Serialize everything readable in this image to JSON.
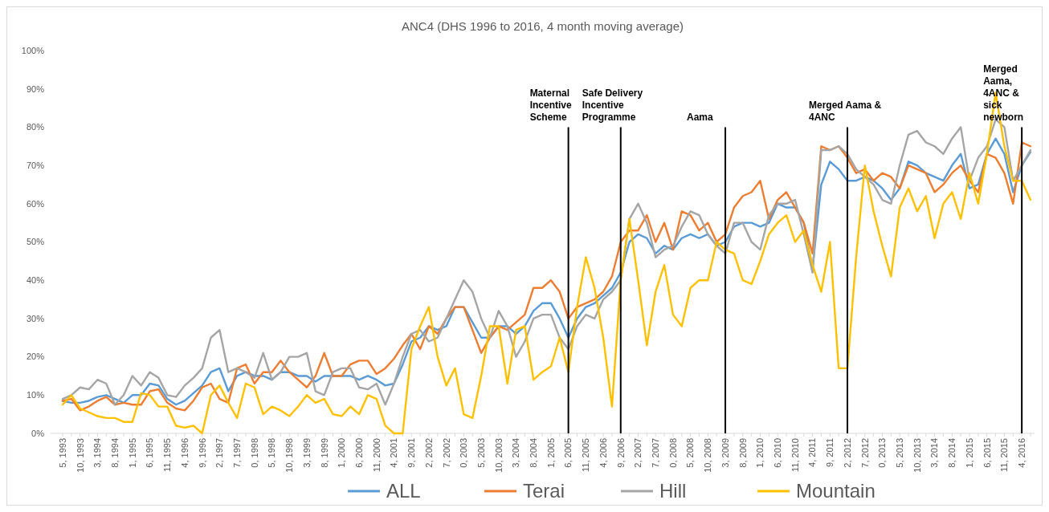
{
  "chart_data": {
    "type": "line",
    "title": "ANC4  (DHS 1996 to 2016, 4 month moving average)",
    "categories": [
      "5, 1993",
      null,
      "10, 1993",
      null,
      "3, 1994",
      null,
      "8, 1994",
      null,
      "1, 1995",
      null,
      "6, 1995",
      null,
      "11, 1995",
      null,
      "4, 1996",
      null,
      "9, 1996",
      null,
      "2, 1997",
      null,
      "7, 1997",
      null,
      "0, 1998",
      null,
      "5, 1998",
      null,
      "10, 1998",
      null,
      "3, 1999",
      null,
      "8, 1999",
      null,
      "1, 2000",
      null,
      "6, 2000",
      null,
      "11, 2000",
      null,
      "4, 2001",
      null,
      "9, 2001",
      null,
      "2, 2002",
      null,
      "7, 2002",
      null,
      "0, 2003",
      null,
      "5, 2003",
      null,
      "10, 2003",
      null,
      "3, 2004",
      null,
      "8, 2004",
      null,
      "1, 2005",
      null,
      "6, 2005",
      null,
      "11, 2005",
      null,
      "4, 2006",
      null,
      "9, 2006",
      null,
      "2, 2007",
      null,
      "7, 2007",
      null,
      "0, 2008",
      null,
      "5, 2008",
      null,
      "10, 2008",
      null,
      "3, 2009",
      null,
      "8, 2009",
      null,
      "1, 2010",
      null,
      "6, 2010",
      null,
      "11, 2010",
      null,
      "4, 2011",
      null,
      "9, 2011",
      null,
      "2, 2012",
      null,
      "7, 2012",
      null,
      "0, 2013",
      null,
      "5, 2013",
      null,
      "10, 2013",
      null,
      "3, 2014",
      null,
      "8, 2014",
      null,
      "1, 2015",
      null,
      "6, 2015",
      null,
      "11, 2015",
      null,
      "4, 2016",
      null
    ],
    "series": [
      {
        "name": "ALL",
        "color": "#5b9bd5",
        "values": [
          8.5,
          8,
          8,
          8.5,
          9.5,
          10,
          9,
          8,
          10,
          10,
          13,
          12.5,
          9,
          7.5,
          8.5,
          10.5,
          12.5,
          16,
          17,
          11,
          15,
          16,
          15,
          15,
          14,
          16,
          16,
          15,
          15,
          13.5,
          15,
          15,
          15,
          15,
          14,
          15,
          14,
          12.5,
          13,
          18,
          24,
          25,
          28,
          27,
          28,
          33,
          33,
          29,
          25,
          25,
          28,
          28,
          26,
          28,
          32,
          34,
          34,
          30,
          25,
          30,
          33,
          34,
          36,
          38,
          42,
          50,
          52,
          51,
          47,
          49,
          48,
          51,
          52,
          51,
          52,
          49,
          50,
          54,
          55,
          55,
          54,
          55,
          60,
          59,
          59,
          55,
          43,
          65,
          71,
          69,
          66,
          66,
          67,
          66,
          64,
          61,
          64,
          71,
          70,
          68,
          67,
          66,
          70,
          73,
          64,
          65,
          73,
          77,
          73,
          63,
          70,
          73.5
        ]
      },
      {
        "name": "Terai",
        "color": "#ed7d31",
        "values": [
          8.5,
          9,
          6,
          7,
          8.5,
          9.5,
          7.5,
          8,
          7.5,
          7.5,
          11,
          11.5,
          8,
          6.5,
          6,
          8.5,
          12,
          13,
          9,
          8,
          17,
          18,
          13,
          16,
          16,
          19,
          16,
          14,
          12,
          15,
          21,
          15,
          15,
          18,
          19,
          19,
          15.5,
          17,
          19.5,
          23,
          26,
          22,
          28,
          26,
          30,
          33,
          33,
          27,
          21,
          25,
          28,
          27,
          29,
          31,
          38,
          38,
          40,
          37,
          30,
          33,
          34,
          35,
          37,
          41,
          50,
          53,
          53,
          57,
          50,
          55,
          48,
          58,
          57,
          53,
          55,
          50,
          52,
          59,
          62,
          63,
          66,
          56,
          61,
          63,
          59,
          55,
          47,
          75,
          74,
          75,
          72,
          68,
          69,
          66,
          68,
          67,
          64,
          70,
          69,
          68,
          63,
          65,
          68,
          70,
          66,
          63,
          73,
          72,
          68,
          60,
          76,
          75
        ]
      },
      {
        "name": "Hill",
        "color": "#a5a5a5",
        "values": [
          9,
          10,
          12,
          11.5,
          14,
          13,
          7.5,
          10,
          15,
          12.5,
          16,
          14.5,
          10,
          9.5,
          12.5,
          14.5,
          17,
          25,
          27,
          16,
          17,
          16,
          14.5,
          21,
          14,
          16,
          20,
          20,
          21,
          11,
          10,
          16,
          17,
          17,
          12,
          11.5,
          13,
          7.5,
          13,
          20,
          26,
          27,
          24,
          25,
          30,
          35,
          40,
          37,
          30,
          25,
          32,
          28,
          20,
          24,
          30,
          31,
          31,
          25,
          22,
          28,
          31,
          30,
          35,
          37,
          40,
          56,
          60,
          55,
          46,
          48,
          49,
          54,
          58,
          57,
          52,
          49,
          47,
          55,
          55,
          50,
          48,
          57,
          60,
          60,
          61,
          52,
          42,
          74,
          74,
          75,
          73,
          69,
          67,
          65,
          61,
          60,
          70,
          78,
          79,
          76,
          75,
          73,
          77,
          80,
          66,
          72,
          75,
          82,
          80,
          66,
          70,
          74
        ]
      },
      {
        "name": "Mountain",
        "color": "#ffc000",
        "values": [
          7.5,
          10,
          6.5,
          5.5,
          4.5,
          4,
          4,
          3,
          3,
          10.5,
          10,
          7,
          7,
          2,
          1.5,
          2,
          0,
          10,
          12.5,
          8,
          4,
          13,
          12,
          5,
          7,
          6,
          4.5,
          7,
          10,
          8,
          9,
          5,
          4.5,
          7,
          5,
          10,
          9,
          2,
          0,
          0,
          22,
          28,
          33,
          20,
          12.5,
          17,
          5,
          4,
          15,
          28,
          28,
          13,
          27,
          28,
          14,
          16,
          17.5,
          25,
          16,
          33,
          46,
          38,
          25,
          7,
          40,
          56,
          40,
          23,
          37,
          44,
          31,
          28,
          38,
          40,
          40,
          50,
          48,
          47,
          40,
          39,
          45,
          52,
          55,
          57,
          50,
          53,
          44,
          37,
          50,
          17,
          17,
          46,
          70,
          58,
          49,
          41,
          59,
          64,
          58,
          62,
          51,
          60,
          63,
          56,
          68,
          60,
          73,
          89,
          75,
          66,
          66,
          61
        ]
      }
    ],
    "ylim": [
      0,
      100
    ],
    "yticks": [
      {
        "value": 0,
        "label": "0%"
      },
      {
        "value": 10,
        "label": "10%"
      },
      {
        "value": 20,
        "label": "20%"
      },
      {
        "value": 30,
        "label": "30%"
      },
      {
        "value": 40,
        "label": "40%"
      },
      {
        "value": 50,
        "label": "50%"
      },
      {
        "value": 60,
        "label": "60%"
      },
      {
        "value": 70,
        "label": "70%"
      },
      {
        "value": 80,
        "label": "80%"
      },
      {
        "value": 90,
        "label": "90%"
      },
      {
        "value": 100,
        "label": "100%"
      }
    ],
    "ref_lines": [
      {
        "axis": "x",
        "value": "6, 2005",
        "label": "Maternal Incentive Scheme",
        "color": "#000000"
      },
      {
        "axis": "x",
        "value": "9, 2006",
        "label": "Safe Delivery Incentive Programme",
        "color": "#000000"
      },
      {
        "axis": "x",
        "value": "3, 2009",
        "label": "Aama",
        "color": "#000000"
      },
      {
        "axis": "x",
        "value": "2, 2012",
        "label": "Merged Aama & 4ANC",
        "color": "#000000"
      },
      {
        "axis": "x",
        "value": "4, 2016",
        "label": "Merged Aama, 4ANC & sick newborn",
        "color": "#000000"
      }
    ],
    "grid": false,
    "legend": "bottom",
    "marker": "none",
    "line_style": "solid"
  }
}
